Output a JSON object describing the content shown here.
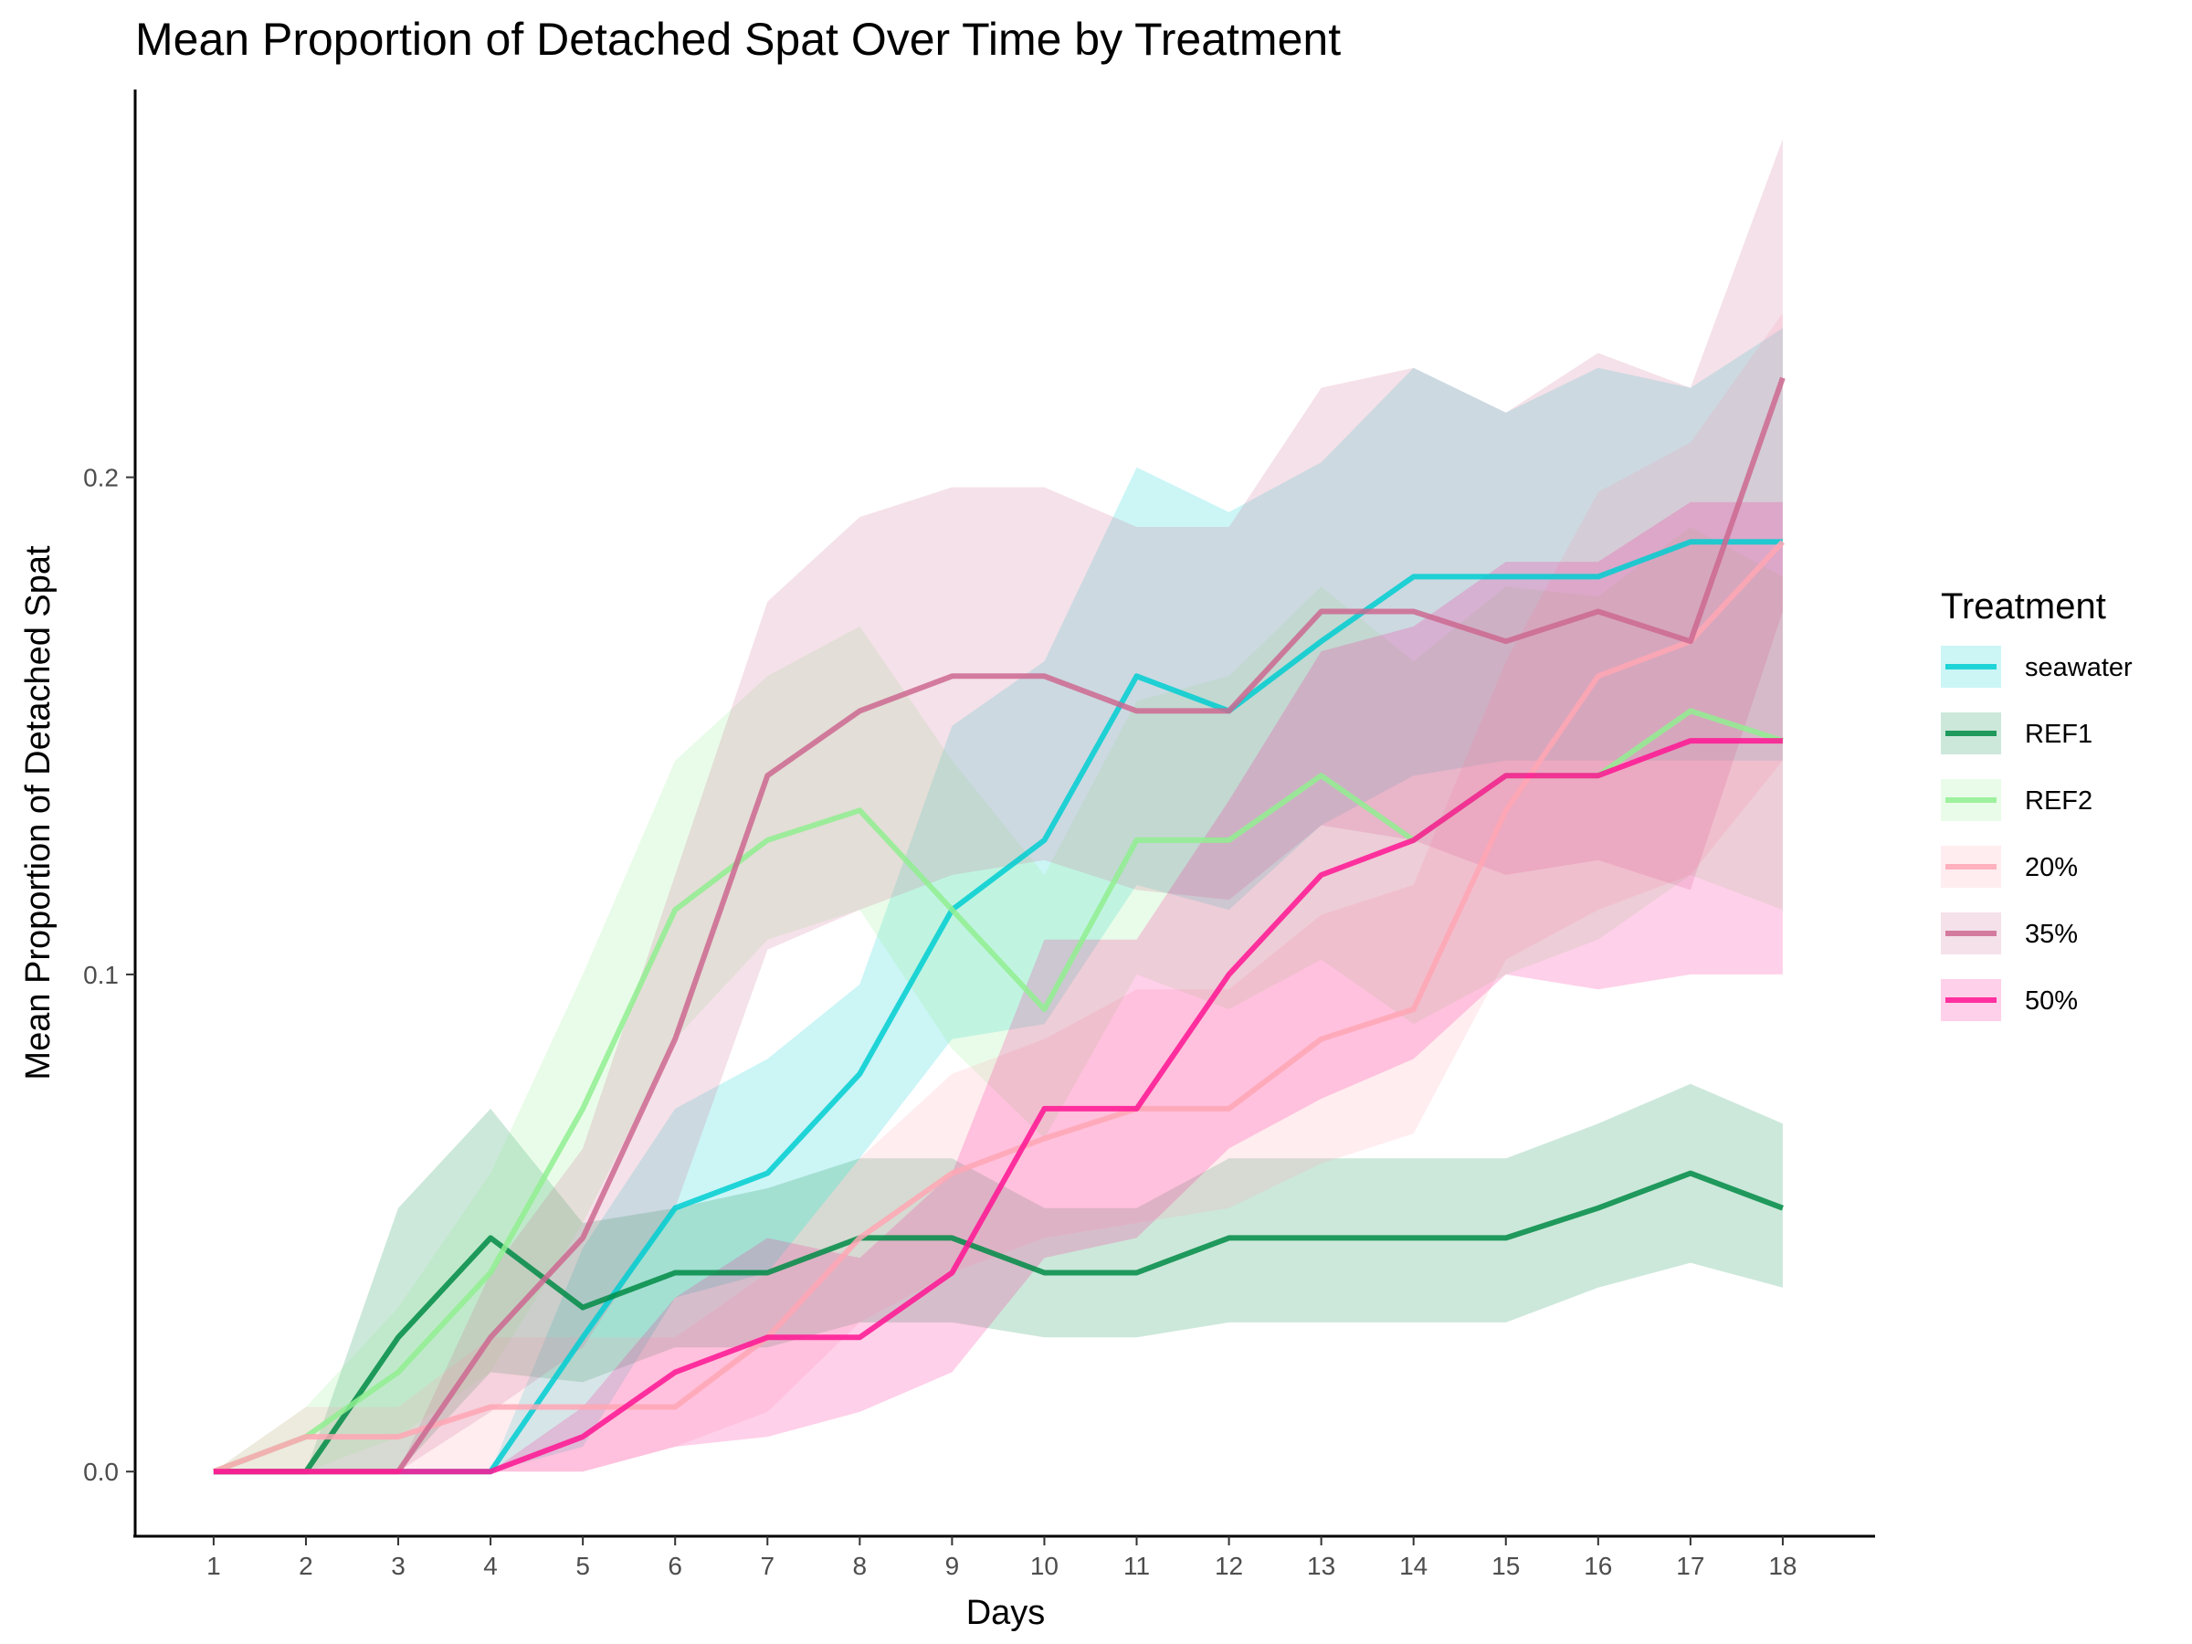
{
  "chart_data": {
    "type": "line",
    "title": "Mean Proportion of Detached Spat Over Time by Treatment",
    "xlabel": "Days",
    "ylabel": "Mean Proportion of  Detached Spat",
    "x": [
      1,
      2,
      3,
      4,
      5,
      6,
      7,
      8,
      9,
      10,
      11,
      12,
      13,
      14,
      15,
      16,
      17,
      18
    ],
    "xlim": [
      0.15,
      19
    ],
    "ylim": [
      -0.013,
      0.278
    ],
    "yticks": [
      0.0,
      0.1,
      0.2
    ],
    "ytick_labels": [
      "0.0",
      "0.1",
      "0.2"
    ],
    "grid": false,
    "legend": {
      "title": "Treatment",
      "position": "right"
    },
    "series": [
      {
        "name": "seawater",
        "color": "#00CED1",
        "fill_opacity": 0.2,
        "values": [
          0,
          0,
          0,
          0,
          0.027,
          0.053,
          0.06,
          0.08,
          0.113,
          0.127,
          0.16,
          0.153,
          0.167,
          0.18,
          0.18,
          0.18,
          0.187,
          0.187
        ],
        "lower": [
          0,
          0,
          0,
          0,
          0.005,
          0.035,
          0.04,
          0.063,
          0.087,
          0.09,
          0.118,
          0.113,
          0.13,
          0.14,
          0.143,
          0.143,
          0.143,
          0.143
        ],
        "upper": [
          0,
          0,
          0,
          0,
          0.045,
          0.073,
          0.083,
          0.098,
          0.15,
          0.163,
          0.202,
          0.193,
          0.203,
          0.222,
          0.213,
          0.222,
          0.218,
          0.23
        ]
      },
      {
        "name": "REF1",
        "color": "#008B45",
        "fill_opacity": 0.2,
        "values": [
          0,
          0,
          0.027,
          0.047,
          0.033,
          0.04,
          0.04,
          0.047,
          0.047,
          0.04,
          0.04,
          0.047,
          0.047,
          0.047,
          0.047,
          0.053,
          0.06,
          0.053
        ],
        "lower": [
          0,
          0,
          0,
          0.02,
          0.018,
          0.025,
          0.025,
          0.03,
          0.03,
          0.027,
          0.027,
          0.03,
          0.03,
          0.03,
          0.03,
          0.037,
          0.042,
          0.037
        ],
        "upper": [
          0,
          0,
          0.053,
          0.073,
          0.05,
          0.053,
          0.057,
          0.063,
          0.063,
          0.053,
          0.053,
          0.063,
          0.063,
          0.063,
          0.063,
          0.07,
          0.078,
          0.07
        ]
      },
      {
        "name": "REF2",
        "color": "#90EE90",
        "fill_opacity": 0.2,
        "values": [
          0,
          0.007,
          0.02,
          0.04,
          0.073,
          0.113,
          0.127,
          0.133,
          0.113,
          0.093,
          0.127,
          0.127,
          0.14,
          0.127,
          0.14,
          0.14,
          0.153,
          0.147
        ],
        "lower": [
          0,
          0,
          0.007,
          0.02,
          0.05,
          0.087,
          0.107,
          0.113,
          0.085,
          0.067,
          0.1,
          0.093,
          0.103,
          0.09,
          0.1,
          0.107,
          0.12,
          0.113
        ],
        "upper": [
          0,
          0.013,
          0.033,
          0.06,
          0.1,
          0.143,
          0.16,
          0.17,
          0.143,
          0.12,
          0.155,
          0.16,
          0.178,
          0.163,
          0.178,
          0.176,
          0.19,
          0.18
        ]
      },
      {
        "name": "20%",
        "color": "#FFA6B4",
        "fill_opacity": 0.2,
        "values": [
          0,
          0.007,
          0.007,
          0.013,
          0.013,
          0.013,
          0.027,
          0.047,
          0.06,
          0.067,
          0.073,
          0.073,
          0.087,
          0.093,
          0.133,
          0.16,
          0.167,
          0.187
        ],
        "lower": [
          0,
          0,
          0,
          0,
          0,
          0.005,
          0.012,
          0.03,
          0.04,
          0.047,
          0.05,
          0.053,
          0.062,
          0.068,
          0.103,
          0.113,
          0.12,
          0.143
        ],
        "upper": [
          0,
          0.013,
          0.013,
          0.027,
          0.027,
          0.027,
          0.04,
          0.063,
          0.08,
          0.087,
          0.097,
          0.097,
          0.112,
          0.118,
          0.163,
          0.197,
          0.207,
          0.233
        ]
      },
      {
        "name": "35%",
        "color": "#CD6890",
        "fill_opacity": 0.2,
        "values": [
          0,
          0,
          0,
          0.027,
          0.047,
          0.087,
          0.14,
          0.153,
          0.16,
          0.16,
          0.153,
          0.153,
          0.173,
          0.173,
          0.167,
          0.173,
          0.167,
          0.22
        ],
        "lower": [
          0,
          0,
          0,
          0.012,
          0.025,
          0.053,
          0.105,
          0.113,
          0.12,
          0.123,
          0.117,
          0.115,
          0.13,
          0.127,
          0.12,
          0.123,
          0.117,
          0.173
        ],
        "upper": [
          0,
          0,
          0,
          0.04,
          0.065,
          0.12,
          0.175,
          0.192,
          0.198,
          0.198,
          0.19,
          0.19,
          0.218,
          0.222,
          0.213,
          0.225,
          0.218,
          0.268
        ]
      },
      {
        "name": "50%",
        "color": "#FF1493",
        "fill_opacity": 0.2,
        "values": [
          0,
          0,
          0,
          0,
          0.007,
          0.02,
          0.027,
          0.027,
          0.04,
          0.073,
          0.073,
          0.1,
          0.12,
          0.127,
          0.14,
          0.14,
          0.147,
          0.147
        ],
        "lower": [
          0,
          0,
          0,
          0,
          0,
          0.005,
          0.007,
          0.012,
          0.02,
          0.043,
          0.047,
          0.065,
          0.075,
          0.083,
          0.1,
          0.097,
          0.1,
          0.1
        ],
        "upper": [
          0,
          0,
          0,
          0,
          0.013,
          0.035,
          0.047,
          0.043,
          0.06,
          0.107,
          0.107,
          0.135,
          0.165,
          0.17,
          0.183,
          0.183,
          0.195,
          0.195
        ]
      }
    ]
  }
}
